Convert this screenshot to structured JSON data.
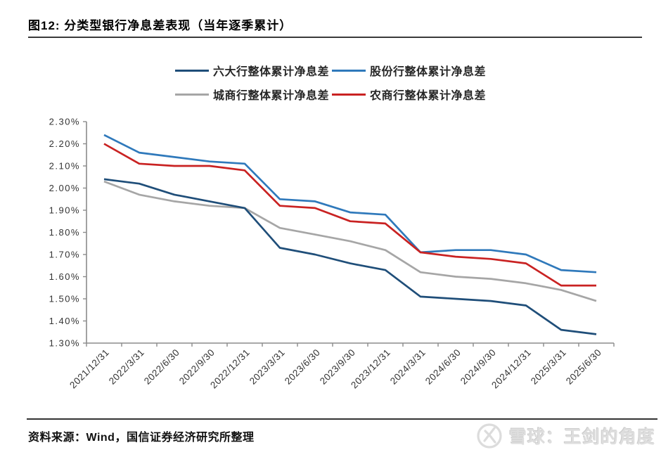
{
  "figure": {
    "title": "图12: 分类型银行净息差表现（当年逐季累计）",
    "source_note": "资料来源：Wind，国信证券经济研究所整理",
    "watermark_text": "雪球：王剑的角度",
    "watermark_icon": "xueqiu-logo"
  },
  "chart_data": {
    "type": "line",
    "title": "分类型银行净息差表现（当年逐季累计）",
    "categories": [
      "2021/12/31",
      "2022/3/31",
      "2022/6/30",
      "2022/9/30",
      "2022/12/31",
      "2023/3/31",
      "2023/6/30",
      "2023/9/30",
      "2023/12/31",
      "2024/3/31",
      "2024/6/30",
      "2024/9/30",
      "2024/12/31",
      "2025/3/31",
      "2025/6/30"
    ],
    "series": [
      {
        "name": "六大行整体累计净息差",
        "color": "#1F4E79",
        "values": [
          2.04,
          2.02,
          1.97,
          1.94,
          1.91,
          1.73,
          1.7,
          1.66,
          1.63,
          1.51,
          1.5,
          1.49,
          1.47,
          1.36,
          1.34
        ]
      },
      {
        "name": "股份行整体累计净息差",
        "color": "#2F79BB",
        "values": [
          2.24,
          2.16,
          2.14,
          2.12,
          2.11,
          1.95,
          1.94,
          1.89,
          1.88,
          1.71,
          1.72,
          1.72,
          1.7,
          1.63,
          1.62
        ]
      },
      {
        "name": "城商行整体累计净息差",
        "color": "#A6A6A6",
        "values": [
          2.03,
          1.97,
          1.94,
          1.92,
          1.91,
          1.82,
          1.79,
          1.76,
          1.72,
          1.62,
          1.6,
          1.59,
          1.57,
          1.54,
          1.49
        ]
      },
      {
        "name": "农商行整体累计净息差",
        "color": "#C92222",
        "values": [
          2.2,
          2.11,
          2.1,
          2.1,
          2.08,
          1.92,
          1.91,
          1.85,
          1.84,
          1.71,
          1.69,
          1.68,
          1.66,
          1.56,
          1.56
        ]
      }
    ],
    "unit": "%",
    "ylim": [
      1.3,
      2.3
    ],
    "y_tick_step": 0.1,
    "y_tick_labels": [
      "1.30%",
      "1.40%",
      "1.50%",
      "1.60%",
      "1.70%",
      "1.80%",
      "1.90%",
      "2.00%",
      "2.10%",
      "2.20%",
      "2.30%"
    ],
    "x_tick_label_rotation": -45,
    "grid": false,
    "legend_position": "top",
    "axis_color": "#8C8C8C"
  }
}
